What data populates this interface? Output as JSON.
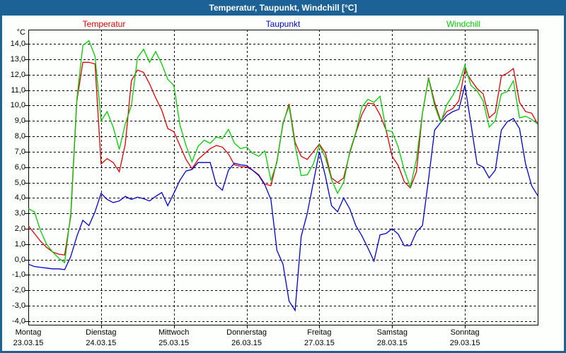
{
  "window": {
    "title": "Temperatur, Taupunkt, Windchill [°C]"
  },
  "colors": {
    "titlebar_bg": "#1d6296",
    "titlebar_text": "#ffffff",
    "border": "#1d6296",
    "background": "#fdfffd",
    "grid": "#000000",
    "temperatur": "#dd0000",
    "taupunkt": "#0000cc",
    "windchill": "#00cc00"
  },
  "legend": [
    {
      "label": "Temperatur",
      "color": "#dd0000"
    },
    {
      "label": "Taupunkt",
      "color": "#0000cc"
    },
    {
      "label": "Windchill",
      "color": "#00cc00"
    }
  ],
  "y_axis": {
    "unit": "°C",
    "tick_labels": [
      "14,0",
      "13,0",
      "12,0",
      "11,0",
      "10,0",
      "9,0",
      "8,0",
      "7,0",
      "6,0",
      "5,0",
      "4,0",
      "3,0",
      "2,0",
      "1,0",
      "0,0",
      "-1,0",
      "-2,0",
      "-3,0",
      "-4,0"
    ],
    "tick_values": [
      14,
      13,
      12,
      11,
      10,
      9,
      8,
      7,
      6,
      5,
      4,
      3,
      2,
      1,
      0,
      -1,
      -2,
      -3,
      -4
    ]
  },
  "x_axis": {
    "days": [
      {
        "name": "Montag",
        "date": "23.03.15"
      },
      {
        "name": "Dienstag",
        "date": "24.03.15"
      },
      {
        "name": "Mittwoch",
        "date": "25.03.15"
      },
      {
        "name": "Donnerstag",
        "date": "26.03.15"
      },
      {
        "name": "Freitag",
        "date": "27.03.15"
      },
      {
        "name": "Samstag",
        "date": "28.03.15"
      },
      {
        "name": "Sonntag",
        "date": "29.03.15"
      }
    ]
  },
  "chart_data": {
    "type": "line",
    "title": "Temperatur, Taupunkt, Windchill [°C]",
    "xlabel": "",
    "ylabel": "°C",
    "ylim": [
      -4.23,
      14.92
    ],
    "grid": true,
    "legend_position": "top",
    "x_unit": "hours_since_monday_00:00",
    "x": [
      0,
      2,
      4,
      6,
      8,
      10,
      12,
      14,
      16,
      18,
      20,
      22,
      24,
      26,
      28,
      30,
      32,
      34,
      36,
      38,
      40,
      42,
      44,
      46,
      48,
      50,
      52,
      54,
      56,
      58,
      60,
      62,
      64,
      66,
      68,
      70,
      72,
      74,
      76,
      78,
      80,
      82,
      84,
      86,
      88,
      90,
      92,
      94,
      96,
      98,
      100,
      102,
      104,
      106,
      108,
      110,
      112,
      114,
      116,
      118,
      120,
      122,
      124,
      126,
      128,
      130,
      132,
      134,
      136,
      138,
      140,
      142,
      144,
      146,
      148,
      150,
      152,
      154,
      156,
      158,
      160,
      162,
      164,
      166,
      168
    ],
    "series": [
      {
        "name": "Temperatur",
        "color": "#dd0000",
        "values": [
          2.2,
          1.7,
          1.2,
          0.8,
          0.5,
          0.35,
          0.3,
          2.8,
          10.3,
          12.8,
          12.8,
          12.7,
          6.2,
          6.55,
          6.3,
          5.7,
          7.5,
          11.6,
          12.3,
          12.15,
          11.4,
          10.5,
          9.7,
          8.5,
          8.3,
          7.4,
          6.5,
          5.9,
          6.5,
          6.85,
          7.2,
          7.4,
          7.3,
          6.85,
          6.15,
          6.05,
          6.0,
          5.8,
          5.5,
          4.9,
          4.8,
          6.4,
          8.8,
          10.1,
          7.6,
          6.7,
          6.5,
          7.0,
          7.5,
          6.9,
          5.3,
          5.0,
          5.3,
          6.9,
          8.2,
          9.4,
          10.15,
          10.1,
          9.4,
          8.4,
          6.7,
          6.1,
          5.05,
          4.65,
          5.7,
          9.5,
          11.8,
          10.2,
          9.0,
          9.6,
          9.8,
          10.3,
          12.3,
          11.65,
          11.1,
          10.75,
          9.2,
          9.55,
          11.9,
          12.1,
          12.4,
          10.2,
          9.6,
          9.5,
          8.8
        ]
      },
      {
        "name": "Taupunkt",
        "color": "#0000cc",
        "values": [
          -0.3,
          -0.45,
          -0.5,
          -0.55,
          -0.6,
          -0.6,
          -0.65,
          0.2,
          1.5,
          2.55,
          2.2,
          3.1,
          4.3,
          3.9,
          3.7,
          3.8,
          4.1,
          3.9,
          4.05,
          3.95,
          3.8,
          4.1,
          4.35,
          3.5,
          4.3,
          5.15,
          5.75,
          5.85,
          6.3,
          6.3,
          6.3,
          4.85,
          4.5,
          5.8,
          6.25,
          6.15,
          6.1,
          5.8,
          5.45,
          4.85,
          3.9,
          0.6,
          -0.3,
          -2.7,
          -3.3,
          1.5,
          3.0,
          5.0,
          7.0,
          5.4,
          3.5,
          3.1,
          4.0,
          3.3,
          2.2,
          1.55,
          0.75,
          -0.1,
          1.6,
          1.7,
          2.0,
          1.65,
          0.9,
          0.9,
          1.8,
          2.2,
          5.2,
          8.4,
          8.9,
          9.35,
          9.6,
          9.75,
          11.3,
          8.8,
          6.2,
          6.0,
          5.3,
          5.8,
          8.4,
          8.95,
          9.15,
          8.5,
          6.2,
          4.8,
          4.15
        ]
      },
      {
        "name": "Windchill",
        "color": "#00cc00",
        "values": [
          3.3,
          3.1,
          1.9,
          1.0,
          0.5,
          0.1,
          -0.2,
          3.0,
          10.4,
          13.9,
          14.2,
          13.2,
          9.0,
          9.6,
          8.6,
          7.15,
          8.8,
          10.0,
          13.1,
          13.65,
          12.8,
          13.5,
          12.7,
          11.7,
          11.3,
          8.75,
          7.4,
          6.35,
          7.35,
          7.75,
          7.55,
          7.95,
          7.85,
          8.45,
          7.55,
          7.2,
          7.3,
          6.9,
          6.7,
          7.05,
          5.15,
          6.3,
          8.9,
          9.95,
          7.4,
          5.45,
          5.5,
          6.2,
          7.45,
          6.6,
          5.2,
          4.3,
          5.0,
          7.0,
          8.25,
          9.9,
          10.4,
          10.2,
          10.6,
          8.4,
          8.3,
          7.3,
          5.8,
          4.7,
          6.5,
          9.5,
          11.75,
          10.0,
          8.9,
          10.05,
          10.65,
          11.4,
          12.6,
          11.3,
          10.95,
          10.3,
          8.6,
          9.0,
          10.75,
          10.9,
          11.6,
          9.2,
          9.3,
          9.1,
          8.8
        ]
      }
    ]
  }
}
